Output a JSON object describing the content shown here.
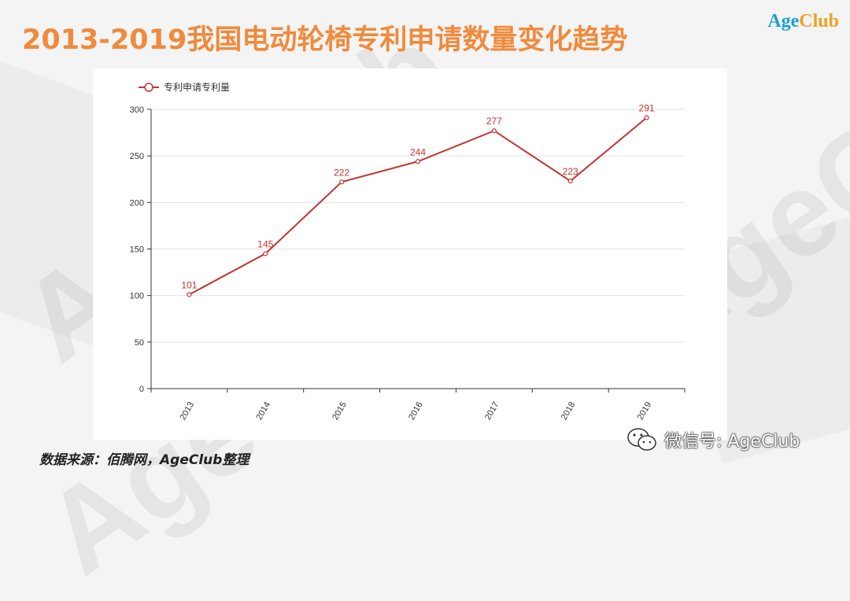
{
  "slide": {
    "title": "2013-2019我国电动轮椅专利申请数量变化趋势",
    "source": "数据来源：佰腾网，AgeClub整理",
    "wechat_label": "微信号: AgeClub",
    "watermark": "AgeClub"
  },
  "logo": {
    "part1": "Age",
    "part2": "Club"
  },
  "colors": {
    "title": "#f08a3c",
    "series": "#c23531",
    "logo_blue": "#1aa0d8",
    "logo_orange": "#f0a020"
  },
  "chart_data": {
    "type": "line",
    "categories": [
      "2013",
      "2014",
      "2015",
      "2016",
      "2017",
      "2018",
      "2019"
    ],
    "series": [
      {
        "name": "专利申请专利量",
        "values": [
          101,
          145,
          222,
          244,
          277,
          223,
          291
        ]
      }
    ],
    "ylim": [
      0,
      300
    ],
    "yticks": [
      0,
      50,
      100,
      150,
      200,
      250,
      300
    ],
    "grid": true,
    "legend": "top-left"
  }
}
